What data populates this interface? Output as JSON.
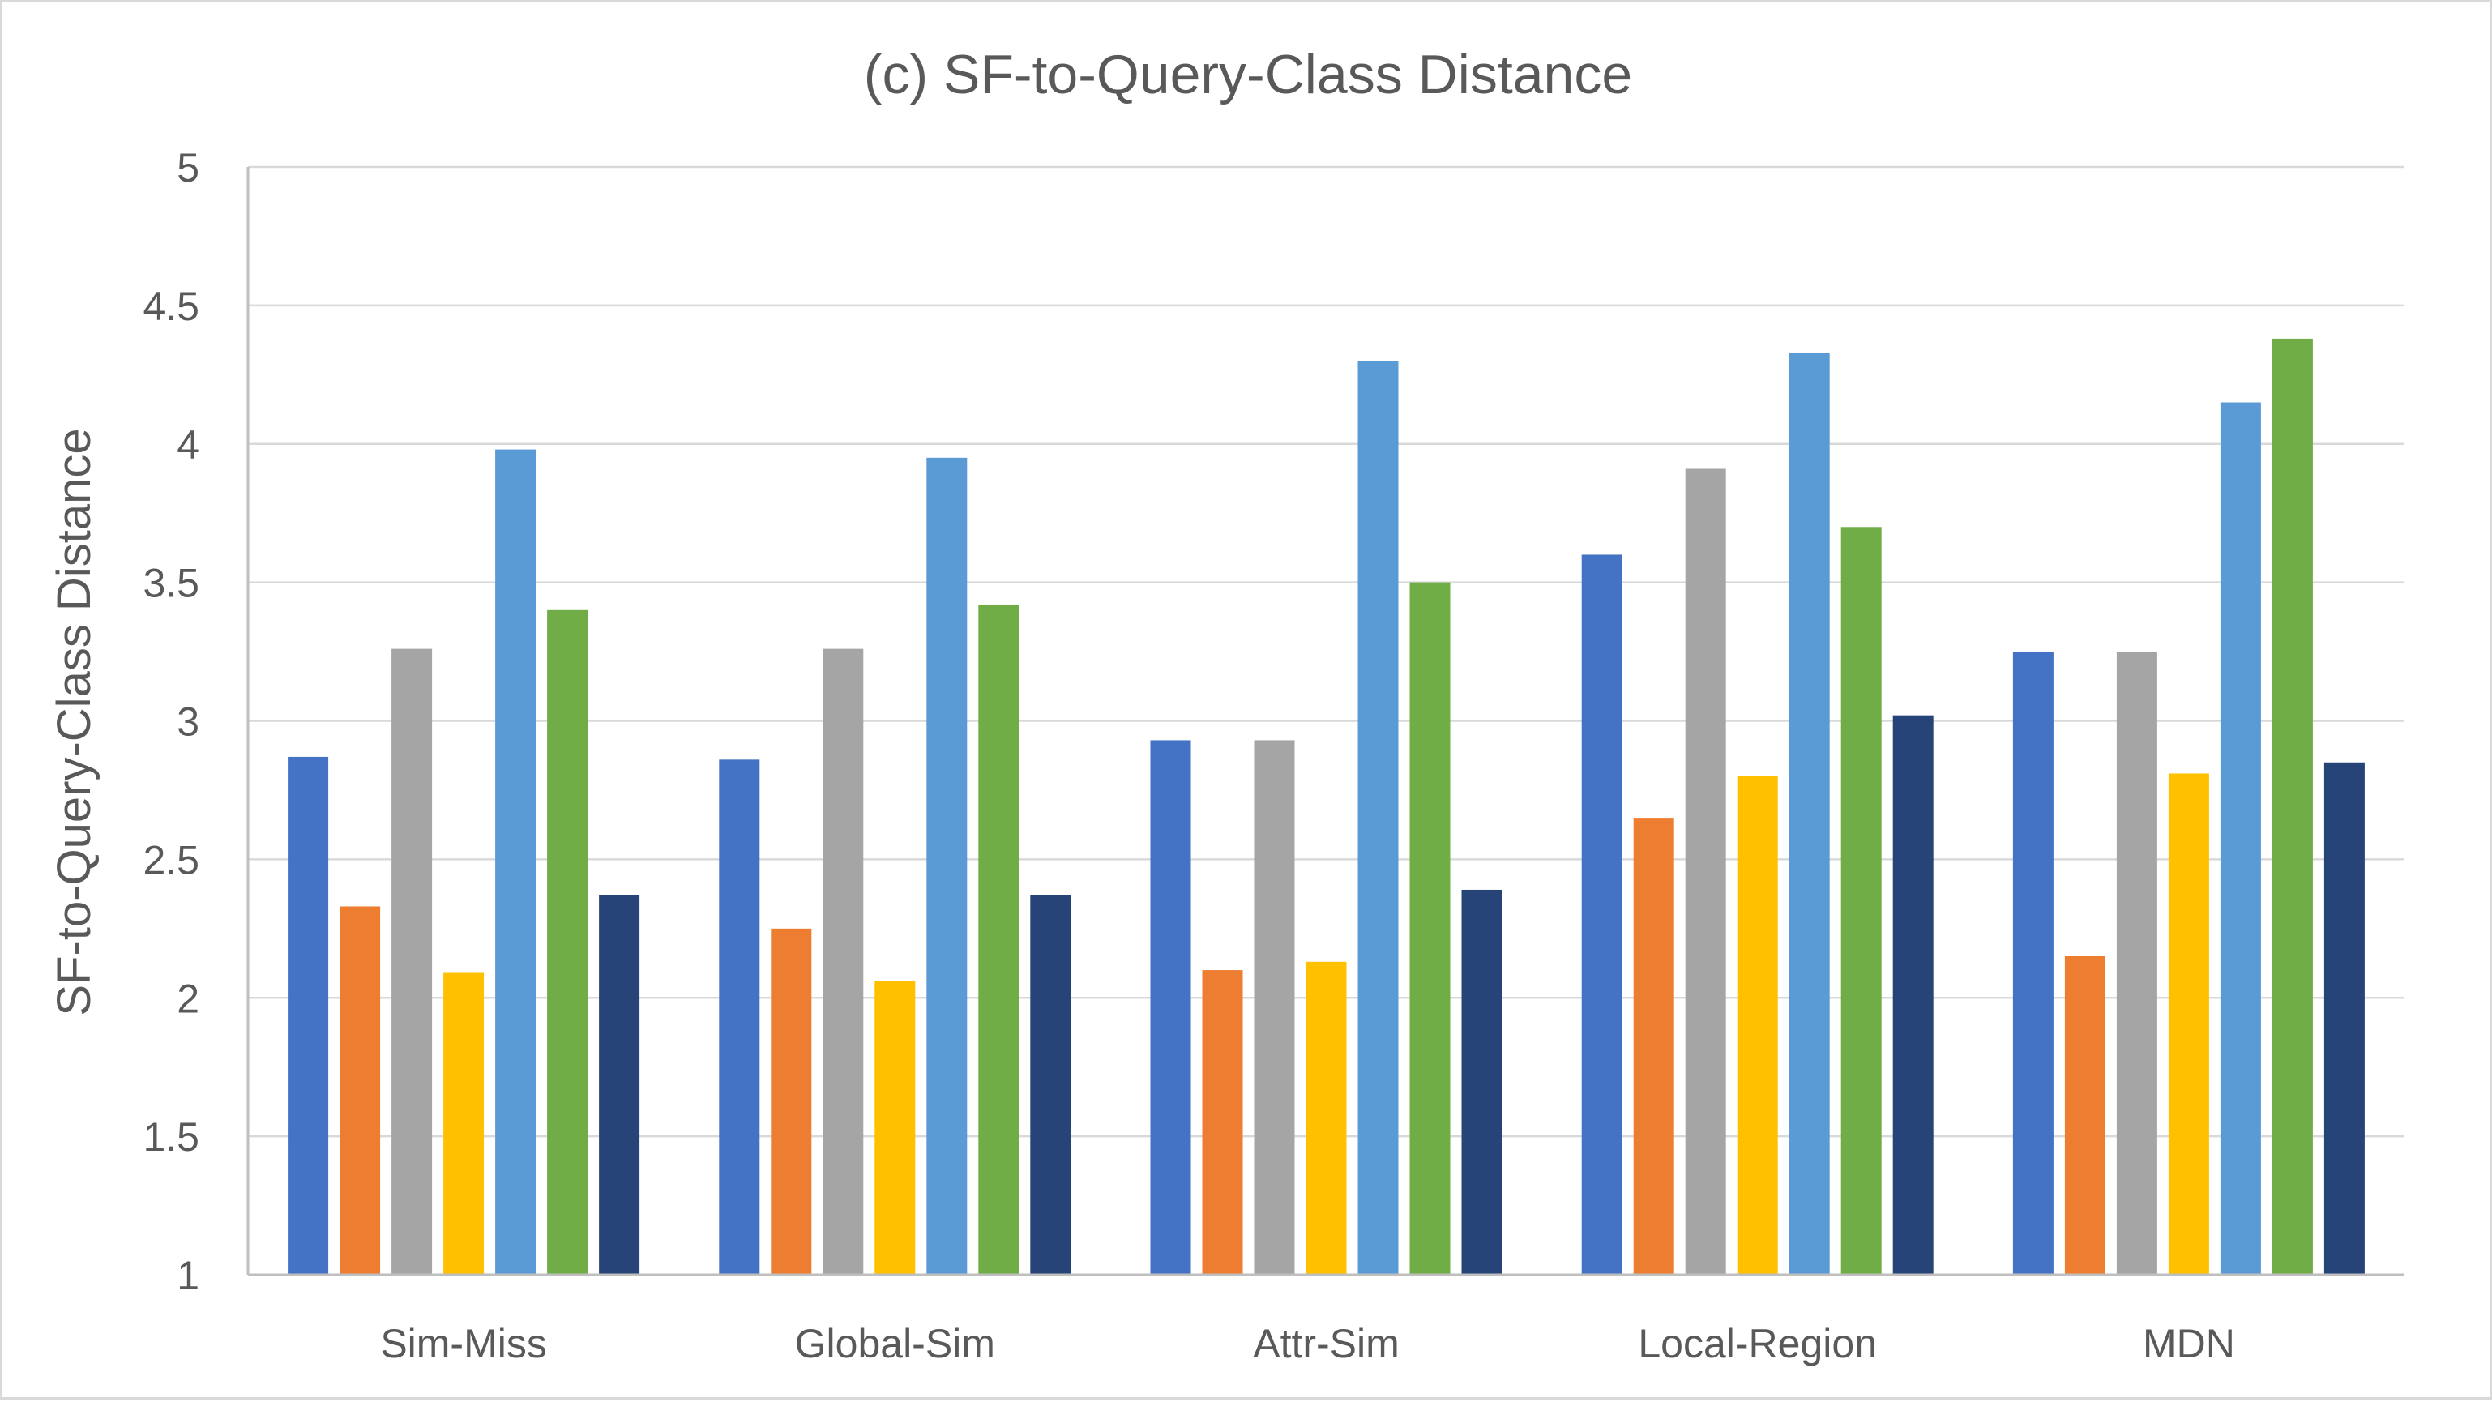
{
  "chart_data": {
    "type": "bar",
    "title": "(c) SF-to-Query-Class Distance",
    "xlabel": "",
    "ylabel": "SF-to-Query-Class Distance",
    "ylim": [
      1,
      5
    ],
    "yticks": [
      1,
      1.5,
      2,
      2.5,
      3,
      3.5,
      4,
      4.5,
      5
    ],
    "ytick_labels": [
      "1",
      "1.5",
      "2",
      "2.5",
      "3",
      "3.5",
      "4",
      "4.5",
      "5"
    ],
    "grid": true,
    "legend": "none",
    "categories": [
      "Sim-Miss",
      "Global-Sim",
      "Attr-Sim",
      "Local-Region",
      "MDN"
    ],
    "series": [
      {
        "color": "#4472c4",
        "values": [
          2.87,
          2.86,
          2.93,
          3.6,
          3.25
        ]
      },
      {
        "color": "#ed7d31",
        "values": [
          2.33,
          2.25,
          2.1,
          2.65,
          2.15
        ]
      },
      {
        "color": "#a5a5a5",
        "values": [
          3.26,
          3.26,
          2.93,
          3.91,
          3.25
        ]
      },
      {
        "color": "#ffc000",
        "values": [
          2.09,
          2.06,
          2.13,
          2.8,
          2.81
        ]
      },
      {
        "color": "#5b9bd5",
        "values": [
          3.98,
          3.95,
          4.3,
          4.33,
          4.15
        ]
      },
      {
        "color": "#70ad47",
        "values": [
          3.4,
          3.42,
          3.5,
          3.7,
          4.38
        ]
      },
      {
        "color": "#264478",
        "values": [
          2.37,
          2.37,
          2.39,
          3.02,
          2.85
        ]
      }
    ]
  }
}
